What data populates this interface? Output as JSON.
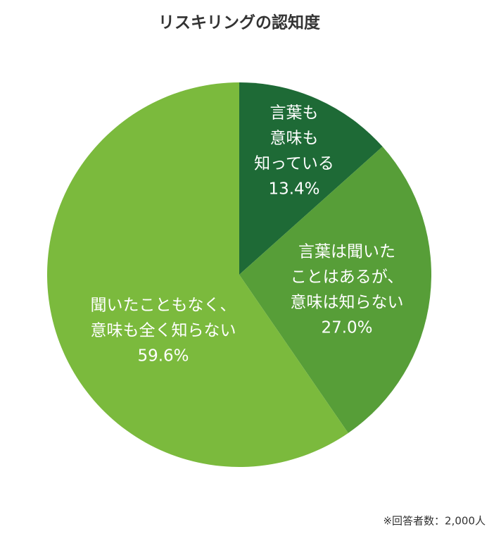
{
  "chart_data": {
    "type": "pie",
    "title": "リスキリングの認知度",
    "categories": [
      [
        "言葉も",
        "意味も",
        "知っている"
      ],
      [
        "言葉は聞いた",
        "ことはあるが、",
        "意味は知らない"
      ],
      [
        "聞いたこともなく、",
        "意味も全く知らない"
      ]
    ],
    "values": [
      13.4,
      27.0,
      59.6
    ],
    "value_labels": [
      "13.4%",
      "27.0%",
      "59.6%"
    ],
    "colors": [
      "#1e6a36",
      "#579e38",
      "#7bba3d"
    ],
    "note": "※回答者数：2,000人"
  }
}
